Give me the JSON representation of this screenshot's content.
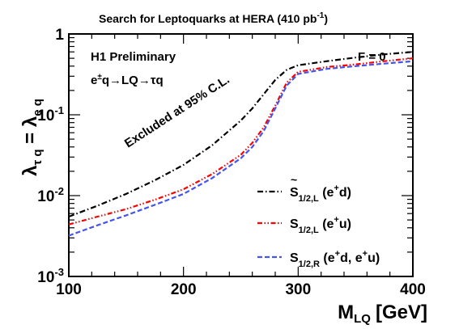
{
  "chart_data": {
    "type": "line",
    "title": "Search for Leptoquarks at HERA (410 pb",
    "title_sup": "-1",
    "title_end": ")",
    "annotations": {
      "experiment": "H1 Preliminary",
      "process": "e±q→LQ→τq",
      "process_parts": {
        "e": "e",
        "pm": "±",
        "rest": "q→LQ→τq"
      },
      "coupling_condition": "F = 0",
      "excluded_region": "Excluded at 95% C.L."
    },
    "xlabel": "M",
    "xlabel_sub": "LQ",
    "xlabel_unit": "[GeV]",
    "ylabel": "λτ q = λe q",
    "ylabel_parts": {
      "lambda1": "λ",
      "sub1": "τ q",
      "eq": " = ",
      "lambda2": "λ",
      "sub2": "e q"
    },
    "xlim": [
      100,
      400
    ],
    "ylim": [
      0.001,
      1
    ],
    "yscale": "log",
    "x_ticks": [
      "100",
      "200",
      "300",
      "400"
    ],
    "y_ticks": [
      {
        "base": "10",
        "exp": "-3",
        "value": 0.001
      },
      {
        "base": "10",
        "exp": "-2",
        "value": 0.01
      },
      {
        "base": "10",
        "exp": "-1",
        "value": 0.1
      },
      {
        "base": "1",
        "exp": "",
        "value": 1
      }
    ],
    "grid": false,
    "legend_position": "bottom-right",
    "series": [
      {
        "name": "S̃1/2,L (e+d)",
        "legend": {
          "sym": "S",
          "tilde": "~",
          "sub": "1/2,L",
          "pre": "(e",
          "sup": "+",
          "post": "d)"
        },
        "color": "#000000",
        "dash": "7,3,1.5,3",
        "x": [
          100,
          125,
          150,
          175,
          200,
          225,
          250,
          260,
          270,
          280,
          290,
          300,
          325,
          350,
          375,
          400
        ],
        "y": [
          0.0055,
          0.0075,
          0.0105,
          0.0155,
          0.024,
          0.042,
          0.085,
          0.12,
          0.18,
          0.27,
          0.36,
          0.41,
          0.46,
          0.51,
          0.56,
          0.6
        ]
      },
      {
        "name": "S1/2,L (e+u)",
        "legend": {
          "sym": "S",
          "tilde": "",
          "sub": "1/2,L",
          "pre": "(e",
          "sup": "+",
          "post": "u)"
        },
        "color": "#ff0000",
        "dash": "6,2.5,1.5,2.5,1.5,2.5",
        "x": [
          100,
          125,
          150,
          175,
          200,
          225,
          250,
          260,
          270,
          280,
          290,
          300,
          325,
          350,
          375,
          400
        ],
        "y": [
          0.0044,
          0.0055,
          0.0068,
          0.0089,
          0.012,
          0.0185,
          0.032,
          0.045,
          0.07,
          0.13,
          0.25,
          0.34,
          0.39,
          0.42,
          0.46,
          0.5
        ]
      },
      {
        "name": "S1/2,R (e+d, e+u)",
        "legend": {
          "sym": "S",
          "tilde": "",
          "sub": "1/2,R",
          "pre": "(e",
          "sup": "+",
          "post": "d, e",
          "sup2": "+",
          "post2": "u)"
        },
        "color": "#4455ee",
        "dash": "6,3",
        "x": [
          100,
          125,
          150,
          175,
          200,
          225,
          250,
          260,
          270,
          280,
          290,
          300,
          325,
          350,
          375,
          400
        ],
        "y": [
          0.0032,
          0.0043,
          0.0057,
          0.0077,
          0.0105,
          0.0165,
          0.029,
          0.04,
          0.063,
          0.12,
          0.23,
          0.32,
          0.37,
          0.4,
          0.43,
          0.46
        ]
      }
    ]
  }
}
